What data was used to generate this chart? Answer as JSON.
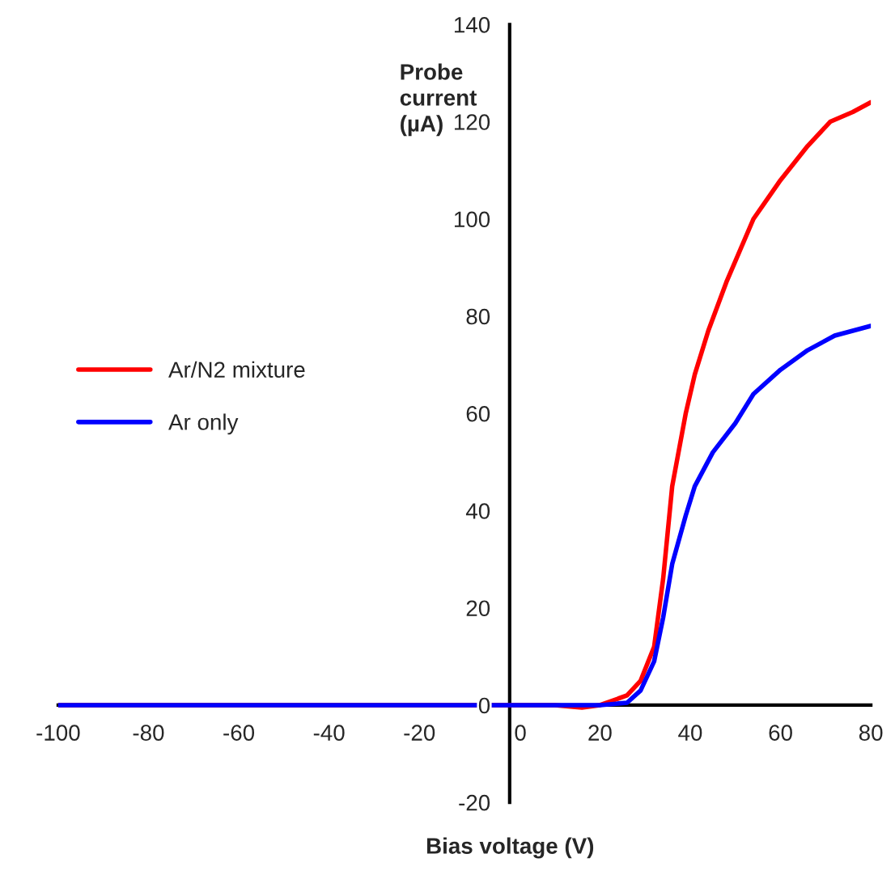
{
  "chart_data": {
    "type": "line",
    "xlabel": "Bias voltage (V)",
    "ylabel": "Probe\ncurrent\n(µA)",
    "xlim": [
      -100,
      80
    ],
    "xticks": [
      -100,
      -80,
      -60,
      -40,
      -20,
      0,
      20,
      40,
      60,
      80
    ],
    "ylim": [
      -20,
      140
    ],
    "yticks": [
      -20,
      0,
      20,
      40,
      60,
      80,
      100,
      120,
      140
    ],
    "grid": false,
    "legend": "left",
    "marker": "none",
    "line_style": "solid",
    "series": [
      {
        "name": "Ar/N2 mixture",
        "color": "#ff0000",
        "x": [
          -100,
          0,
          10,
          16,
          20,
          26,
          29,
          32,
          34,
          36,
          39,
          41,
          44,
          48,
          54,
          60,
          66,
          71,
          76,
          80
        ],
        "values": [
          0,
          0,
          0,
          -0.5,
          0,
          2,
          5,
          12,
          26,
          45,
          60,
          68,
          77,
          87,
          100,
          108,
          115,
          120,
          122,
          124
        ]
      },
      {
        "name": "Ar only",
        "color": "#0000ff",
        "x": [
          -100,
          0,
          10,
          20,
          26,
          29,
          32,
          34,
          36,
          39,
          41,
          45,
          50,
          54,
          60,
          66,
          72,
          80
        ],
        "values": [
          0,
          0,
          0,
          0,
          0.5,
          3,
          9,
          18,
          29,
          39,
          45,
          52,
          58,
          64,
          69,
          73,
          76,
          78
        ]
      }
    ]
  }
}
